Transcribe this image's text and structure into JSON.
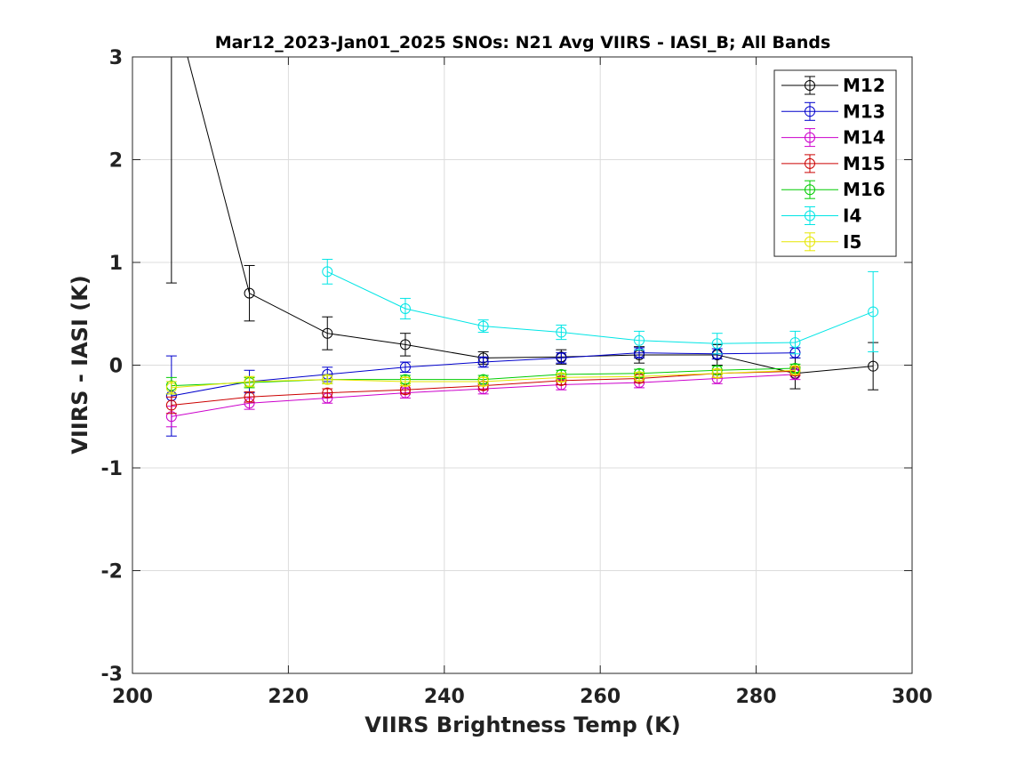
{
  "chart_data": {
    "type": "line",
    "title": "Mar12_2023-Jan01_2025 SNOs: N21 Avg VIIRS - IASI_B; All Bands",
    "xlabel": "VIIRS Brightness Temp (K)",
    "ylabel": "VIIRS - IASI (K)",
    "xlim": [
      200,
      300
    ],
    "ylim": [
      -3,
      3
    ],
    "xticks": [
      200,
      220,
      240,
      260,
      280,
      300
    ],
    "yticks": [
      -3,
      -2,
      -1,
      0,
      1,
      2,
      3
    ],
    "grid": true,
    "legend_position": "top-right",
    "series": [
      {
        "name": "M12",
        "color": "#000000",
        "x": [
          205,
          215,
          225,
          235,
          245,
          255,
          265,
          275,
          285,
          295
        ],
        "y": [
          3.6,
          0.7,
          0.31,
          0.2,
          0.07,
          0.08,
          0.1,
          0.1,
          -0.08,
          -0.01
        ],
        "err": [
          2.8,
          0.27,
          0.16,
          0.11,
          0.06,
          0.07,
          0.08,
          0.1,
          0.15,
          0.23
        ]
      },
      {
        "name": "M13",
        "color": "#0000cc",
        "x": [
          205,
          215,
          225,
          235,
          245,
          255,
          265,
          275,
          285
        ],
        "y": [
          -0.3,
          -0.16,
          -0.09,
          -0.02,
          0.03,
          0.07,
          0.12,
          0.11,
          0.12
        ],
        "err": [
          0.39,
          0.11,
          0.07,
          0.05,
          0.05,
          0.05,
          0.05,
          0.05,
          0.05
        ]
      },
      {
        "name": "M14",
        "color": "#cc00cc",
        "x": [
          205,
          215,
          225,
          235,
          245,
          255,
          265,
          275,
          285
        ],
        "y": [
          -0.5,
          -0.37,
          -0.32,
          -0.27,
          -0.23,
          -0.19,
          -0.17,
          -0.13,
          -0.09
        ],
        "err": [
          0.1,
          0.06,
          0.05,
          0.05,
          0.05,
          0.05,
          0.05,
          0.05,
          0.05
        ]
      },
      {
        "name": "M15",
        "color": "#cc0000",
        "x": [
          205,
          215,
          225,
          235,
          245,
          255,
          265,
          275,
          285
        ],
        "y": [
          -0.39,
          -0.31,
          -0.27,
          -0.24,
          -0.2,
          -0.15,
          -0.13,
          -0.08,
          -0.06
        ],
        "err": [
          0.08,
          0.05,
          0.04,
          0.04,
          0.04,
          0.04,
          0.04,
          0.04,
          0.04
        ]
      },
      {
        "name": "M16",
        "color": "#00cc00",
        "x": [
          205,
          215,
          225,
          235,
          245,
          255,
          265,
          275,
          285
        ],
        "y": [
          -0.2,
          -0.17,
          -0.14,
          -0.14,
          -0.14,
          -0.09,
          -0.08,
          -0.05,
          -0.03
        ],
        "err": [
          0.08,
          0.05,
          0.04,
          0.04,
          0.04,
          0.04,
          0.04,
          0.04,
          0.04
        ]
      },
      {
        "name": "I4",
        "color": "#00e5e5",
        "x": [
          225,
          235,
          245,
          255,
          265,
          275,
          285,
          295
        ],
        "y": [
          0.91,
          0.55,
          0.38,
          0.32,
          0.24,
          0.21,
          0.22,
          0.52
        ],
        "err": [
          0.12,
          0.1,
          0.06,
          0.07,
          0.09,
          0.1,
          0.11,
          0.39
        ]
      },
      {
        "name": "I5",
        "color": "#e6e600",
        "x": [
          205,
          215,
          225,
          235,
          245,
          255,
          265,
          275,
          285
        ],
        "y": [
          -0.22,
          -0.16,
          -0.14,
          -0.16,
          -0.16,
          -0.12,
          -0.11,
          -0.08,
          -0.05
        ],
        "err": [
          0.06,
          0.05,
          0.04,
          0.04,
          0.04,
          0.04,
          0.04,
          0.04,
          0.04
        ]
      }
    ]
  }
}
